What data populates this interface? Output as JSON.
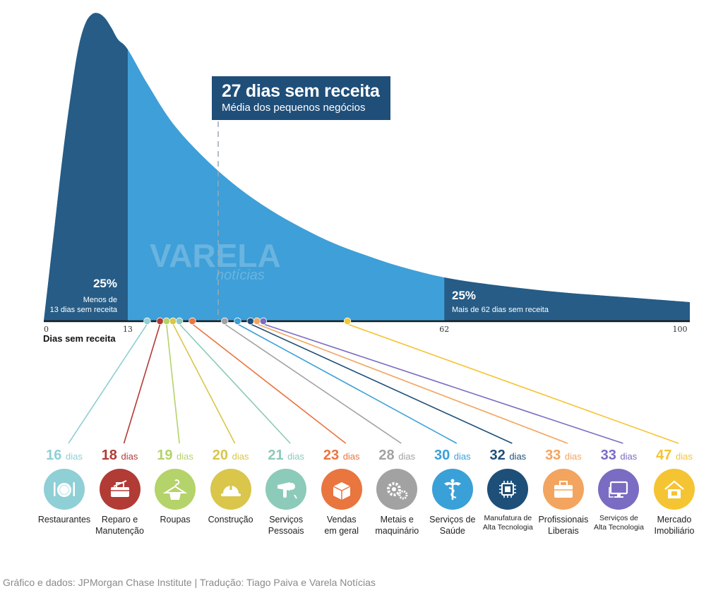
{
  "callout": {
    "title": "27 dias sem receita",
    "subtitle": "Média dos pequenos negócios"
  },
  "left_share": {
    "value": "25%",
    "line1": "Menos de",
    "line2": "13 dias sem receita"
  },
  "right_share": {
    "value": "25%",
    "line1": "Mais de 62 dias sem receita"
  },
  "footer": "Gráfico e dados: JPMorgan Chase Institute | Tradução: Tiago Paiva e Varela Notícias",
  "watermark": "VARELA",
  "watermark_sub": "notícias",
  "chart_data": {
    "type": "area",
    "xlabel": "Dias sem receita",
    "xlim": [
      0,
      100
    ],
    "x_ticks": [
      0,
      13,
      62,
      100
    ],
    "average_days": 27,
    "quartiles": {
      "p25": 13,
      "p75": 62
    },
    "days_unit": "dias",
    "sectors": [
      {
        "days": 16,
        "name": [
          "Restaurantes"
        ],
        "color": "#8fcfd6",
        "icon": "plate-cutlery-icon"
      },
      {
        "days": 18,
        "name": [
          "Reparo e",
          "Manutenção"
        ],
        "color": "#b23b35",
        "icon": "toolbox-icon"
      },
      {
        "days": 19,
        "name": [
          "Roupas"
        ],
        "color": "#b4d36a",
        "icon": "clothes-hanger-icon"
      },
      {
        "days": 20,
        "name": [
          "Construção"
        ],
        "color": "#d9c64a",
        "icon": "hard-hat-icon"
      },
      {
        "days": 21,
        "name": [
          "Serviços",
          "Pessoais"
        ],
        "color": "#8ccab9",
        "icon": "hair-dryer-icon"
      },
      {
        "days": 23,
        "name": [
          "Vendas",
          "em geral"
        ],
        "color": "#e9753f",
        "icon": "boxes-icon"
      },
      {
        "days": 28,
        "name": [
          "Metais e",
          "maquinário"
        ],
        "color": "#a2a2a2",
        "icon": "gears-icon"
      },
      {
        "days": 30,
        "name": [
          "Serviços de",
          "Saúde"
        ],
        "color": "#3aa0d8",
        "icon": "caduceus-icon"
      },
      {
        "days": 32,
        "name": [
          "Manufatura de",
          "Alta Tecnologia"
        ],
        "color": "#1e4f78",
        "icon": "microchip-icon",
        "small": true
      },
      {
        "days": 33,
        "name": [
          "Profissionais",
          "Liberais"
        ],
        "color": "#f3a45f",
        "icon": "briefcase-icon"
      },
      {
        "days": 33,
        "name": [
          "Serviços de",
          "Alta Tecnologia"
        ],
        "color": "#7a6cc2",
        "icon": "computer-monitor-icon",
        "small": true
      },
      {
        "days": 47,
        "name": [
          "Mercado",
          "Imobiliário"
        ],
        "color": "#f5c433",
        "icon": "house-for-sale-icon"
      }
    ]
  }
}
